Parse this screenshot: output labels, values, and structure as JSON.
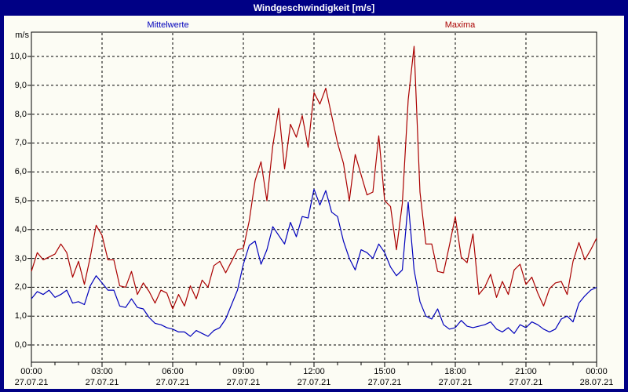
{
  "title": "Windgeschwindigkeit [m/s]",
  "legend": {
    "mean_label": "Mittelwerte",
    "max_label": "Maxima"
  },
  "y_axis": {
    "unit_label": "m/s",
    "tick_labels": [
      "0,0",
      "1,0",
      "2,0",
      "3,0",
      "4,0",
      "5,0",
      "6,0",
      "7,0",
      "8,0",
      "9,0",
      "10,0"
    ]
  },
  "x_axis": {
    "tick_times": [
      "00:00",
      "03:00",
      "06:00",
      "09:00",
      "12:00",
      "15:00",
      "18:00",
      "21:00",
      "00:00"
    ],
    "tick_dates": [
      "27.07.21",
      "27.07.21",
      "27.07.21",
      "27.07.21",
      "27.07.21",
      "27.07.21",
      "27.07.21",
      "27.07.21",
      "28.07.21"
    ]
  },
  "colors": {
    "frame": "#000085",
    "title_text": "#ffffff",
    "background": "#fcfcf4",
    "grid": "#000000",
    "mean_series": "#0000bb",
    "max_series": "#aa0000"
  },
  "chart_data": {
    "type": "line",
    "title": "Windgeschwindigkeit [m/s]",
    "ylabel": "m/s",
    "ylim": [
      0,
      10
    ],
    "grid": true,
    "x_start_hour": 0,
    "x_step_hours": 0.25,
    "x_tick_hours": [
      0,
      3,
      6,
      9,
      12,
      15,
      18,
      21,
      24
    ],
    "x_tick_labels": [
      "00:00 27.07.21",
      "03:00 27.07.21",
      "06:00 27.07.21",
      "09:00 27.07.21",
      "12:00 27.07.21",
      "15:00 27.07.21",
      "18:00 27.07.21",
      "21:00 27.07.21",
      "00:00 28.07.21"
    ],
    "series": [
      {
        "name": "Mittelwerte",
        "color": "#0000bb",
        "values": [
          1.6,
          1.85,
          1.75,
          1.9,
          1.65,
          1.75,
          1.9,
          1.45,
          1.5,
          1.4,
          2.05,
          2.4,
          2.15,
          1.9,
          1.9,
          1.35,
          1.3,
          1.6,
          1.3,
          1.25,
          0.95,
          0.75,
          0.7,
          0.6,
          0.55,
          0.45,
          0.45,
          0.3,
          0.5,
          0.4,
          0.3,
          0.5,
          0.6,
          0.9,
          1.4,
          1.9,
          2.8,
          3.45,
          3.6,
          2.8,
          3.3,
          4.1,
          3.8,
          3.5,
          4.25,
          3.75,
          4.45,
          4.4,
          5.4,
          4.85,
          5.35,
          4.6,
          4.45,
          3.6,
          3.0,
          2.6,
          3.3,
          3.2,
          3.0,
          3.5,
          3.2,
          2.7,
          2.4,
          2.6,
          4.95,
          2.6,
          1.5,
          1.0,
          0.9,
          1.25,
          0.7,
          0.55,
          0.6,
          0.85,
          0.65,
          0.6,
          0.65,
          0.7,
          0.8,
          0.55,
          0.45,
          0.6,
          0.4,
          0.7,
          0.6,
          0.8,
          0.7,
          0.55,
          0.45,
          0.55,
          0.9,
          1.0,
          0.8,
          1.45,
          1.7,
          1.9,
          2.0
        ]
      },
      {
        "name": "Maxima",
        "color": "#aa0000",
        "values": [
          2.55,
          3.2,
          2.95,
          3.05,
          3.15,
          3.5,
          3.2,
          2.35,
          2.9,
          2.1,
          3.05,
          4.15,
          3.8,
          2.95,
          2.95,
          2.05,
          2.0,
          2.55,
          1.75,
          2.15,
          1.85,
          1.45,
          1.9,
          1.8,
          1.25,
          1.75,
          1.35,
          2.05,
          1.6,
          2.25,
          2.0,
          2.75,
          2.9,
          2.5,
          2.9,
          3.3,
          3.35,
          4.3,
          5.7,
          6.35,
          5.0,
          6.9,
          8.2,
          6.1,
          7.65,
          7.2,
          7.95,
          6.85,
          8.75,
          8.35,
          8.9,
          7.95,
          7.0,
          6.3,
          5.0,
          6.6,
          5.9,
          5.2,
          5.3,
          7.25,
          5.0,
          4.8,
          3.3,
          4.9,
          8.5,
          10.35,
          5.3,
          3.5,
          3.5,
          2.55,
          2.5,
          3.45,
          4.45,
          3.05,
          2.85,
          3.85,
          1.75,
          2.0,
          2.45,
          1.65,
          2.2,
          1.75,
          2.6,
          2.8,
          2.1,
          2.35,
          1.8,
          1.35,
          1.95,
          2.15,
          2.2,
          1.75,
          2.9,
          3.55,
          2.95,
          3.3,
          3.7
        ]
      }
    ]
  }
}
